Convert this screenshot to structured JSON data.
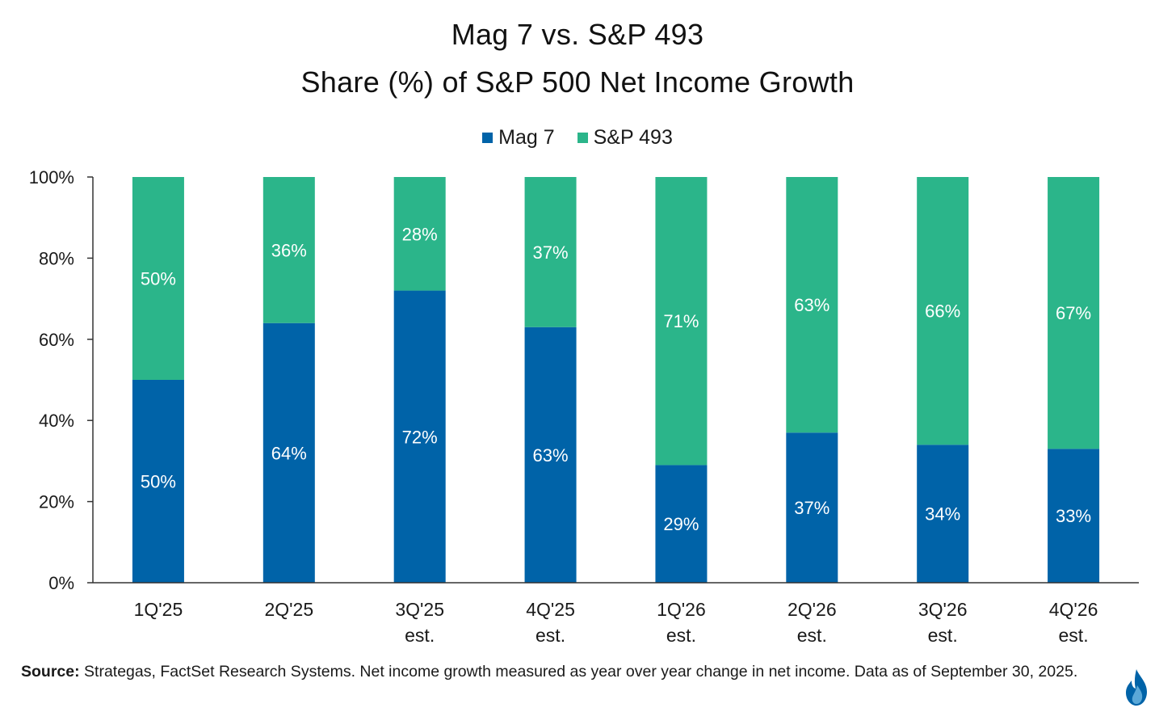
{
  "title": {
    "line1": "Mag 7 vs. S&P 493",
    "line2": "Share (%) of S&P 500 Net Income Growth"
  },
  "legend": [
    {
      "name": "Mag 7",
      "color": "#0063a8"
    },
    {
      "name": "S&P 493",
      "color": "#2bb58a"
    }
  ],
  "chart_data": {
    "type": "bar",
    "stacked": true,
    "categories": [
      [
        "1Q'25"
      ],
      [
        "2Q'25"
      ],
      [
        "3Q'25",
        "est."
      ],
      [
        "4Q'25",
        "est."
      ],
      [
        "1Q'26",
        "est."
      ],
      [
        "2Q'26",
        "est."
      ],
      [
        "3Q'26",
        "est."
      ],
      [
        "4Q'26",
        "est."
      ]
    ],
    "series": [
      {
        "name": "Mag 7",
        "color": "#0063a8",
        "values": [
          50,
          64,
          72,
          63,
          29,
          37,
          34,
          33
        ]
      },
      {
        "name": "S&P 493",
        "color": "#2bb58a",
        "values": [
          50,
          36,
          28,
          37,
          71,
          63,
          66,
          67
        ]
      }
    ],
    "data_label_suffix": "%",
    "ylim": [
      0,
      100
    ],
    "yticks": [
      "0%",
      "20%",
      "40%",
      "60%",
      "80%",
      "100%"
    ],
    "ytick_values": [
      0,
      20,
      40,
      60,
      80,
      100
    ],
    "grid": false,
    "legend_position": "top-center"
  },
  "footer": {
    "source_label": "Source:",
    "source_text": " Strategas, FactSet Research Systems. Net income growth measured as year over year change in net income. Data as of September 30, 2025."
  },
  "logo": {
    "icon": "flame-icon",
    "colors": [
      "#0063a8",
      "#5aa8d8"
    ]
  }
}
